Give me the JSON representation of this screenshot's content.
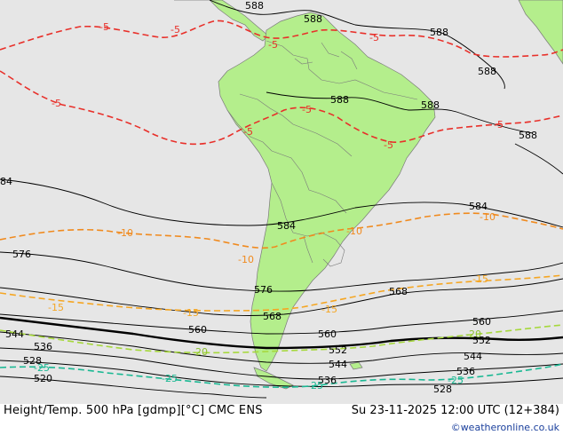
{
  "caption": {
    "title": "Height/Temp. 500 hPa [gdmp][°C] CMC ENS",
    "valid_time": "Su 23-11-2025 12:00 UTC (12+384)",
    "credit": "©weatheronline.co.uk"
  },
  "colors": {
    "ocean": "#e6e6e6",
    "land": "#b4ee8c",
    "height_contour": "#000000",
    "temp_warm": "#e8302a",
    "temp_m10": "#f08a1e",
    "temp_m15": "#f5a623",
    "temp_m20": "#a6d83c",
    "temp_m25": "#1ab893"
  },
  "height_labels": {
    "h588_a": "588",
    "h588_b": "588",
    "h588_c": "588",
    "h588_d": "588",
    "h588_e": "588",
    "h588_f": "588",
    "h588_g": "588",
    "h584_a": "84",
    "h584_b": "584",
    "h584_c": "584",
    "h576_a": "576",
    "h576_b": "576",
    "h568_a": "568",
    "h568_b": "568",
    "h560_a": "560",
    "h560_b": "560",
    "h560_c": "560",
    "h552_a": "552",
    "h552_b": "552",
    "h544_a": "544",
    "h544_b": "544",
    "h544_c": "544",
    "h536_a": "536",
    "h536_b": "536",
    "h536_c": "536",
    "h528_a": "528",
    "h528_b": "528",
    "h520_a": "520"
  },
  "temp_labels": {
    "t5_a": "-5",
    "t5_b": "-5",
    "t5_c": "-5",
    "t5_d": "-5",
    "t5_e": "-5",
    "t5_f": "-5",
    "t5_g": "-5",
    "t5_h": "-5",
    "t5_i": "-5",
    "t10_a": "-10",
    "t10_b": "-10",
    "t10_c": "-10",
    "t10_d": "-10",
    "t15_a": "-15",
    "t15_b": "-15",
    "t15_c": "-15",
    "t15_d": "-15",
    "t20_a": "-20",
    "t20_b": "-20",
    "t25_a": "-25",
    "t25_b": "-25",
    "t25_c": "-25",
    "t25_d": "-25"
  }
}
